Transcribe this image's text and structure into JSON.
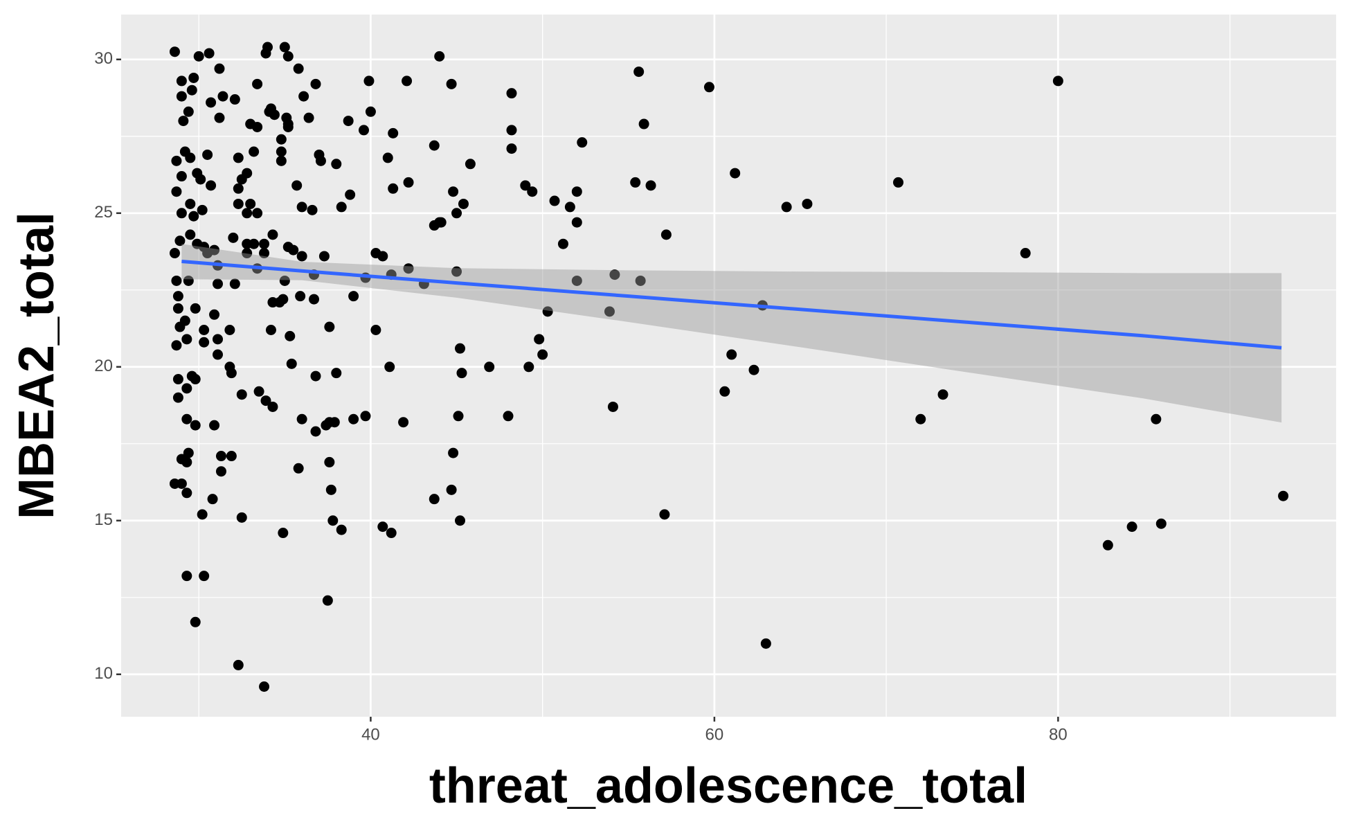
{
  "chart_data": {
    "type": "scatter",
    "x_label": "threat_adolescence_total",
    "y_label": "MBEA2_total",
    "xlim": [
      25.48,
      96.18
    ],
    "ylim": [
      8.62,
      31.46
    ],
    "xticks": [
      40,
      60,
      80
    ],
    "yticks": [
      10,
      15,
      20,
      25,
      30
    ],
    "x_minor_ticks": [
      30,
      50,
      70,
      90
    ],
    "y_minor_ticks": [
      12.5,
      17.5,
      22.5,
      27.5
    ],
    "grid": true,
    "panel_color": "#ebebeb",
    "series": [
      {
        "color": "#000000",
        "x": [
          28.6,
          28.7,
          28.7,
          28.6,
          28.7,
          28.8,
          28.8,
          28.9,
          28.7,
          28.8,
          28.8,
          28.6,
          29.0,
          29.0,
          28.9,
          29.0,
          29.0,
          29.0,
          29.0,
          29.1,
          29.2,
          29.2,
          29.3,
          29.3,
          29.3,
          29.3,
          29.3,
          29.3,
          29.4,
          29.4,
          29.5,
          29.5,
          29.5,
          29.4,
          29.6,
          29.7,
          29.7,
          29.6,
          29.8,
          29.8,
          29.8,
          29.8,
          29.9,
          29.9,
          30.0,
          30.1,
          30.2,
          30.3,
          30.3,
          30.3,
          30.2,
          30.3,
          30.5,
          30.5,
          30.7,
          30.7,
          30.6,
          30.9,
          30.9,
          30.8,
          30.9,
          31.1,
          31.1,
          31.1,
          31.1,
          31.2,
          31.2,
          31.3,
          31.3,
          31.4,
          31.8,
          31.8,
          31.9,
          31.9,
          32.0,
          32.1,
          32.1,
          32.3,
          32.3,
          32.3,
          32.5,
          32.5,
          32.5,
          32.3,
          32.8,
          32.8,
          32.8,
          32.8,
          33.0,
          33.0,
          33.2,
          33.2,
          33.4,
          33.4,
          33.4,
          33.4,
          33.5,
          33.8,
          33.8,
          34.0,
          33.9,
          33.9,
          33.8,
          34.1,
          34.2,
          34.3,
          34.3,
          34.2,
          34.3,
          34.4,
          34.7,
          34.8,
          34.8,
          34.8,
          34.9,
          35.0,
          34.9,
          35.0,
          35.1,
          35.2,
          35.2,
          35.2,
          35.2,
          35.3,
          35.4,
          35.5,
          35.8,
          35.7,
          35.9,
          35.8,
          36.0,
          36.0,
          36.0,
          36.1,
          36.4,
          36.6,
          36.7,
          36.7,
          36.8,
          36.8,
          36.8,
          37.0,
          37.1,
          37.3,
          37.4,
          37.6,
          37.6,
          37.6,
          37.7,
          37.5,
          37.8,
          37.9,
          38.0,
          38.0,
          38.3,
          38.3,
          38.7,
          38.8,
          39.0,
          39.0,
          39.6,
          39.7,
          39.7,
          39.9,
          40.0,
          40.3,
          40.3,
          40.7,
          40.7,
          41.0,
          41.1,
          41.2,
          41.2,
          41.3,
          41.3,
          41.9,
          42.1,
          42.2,
          42.2,
          43.1,
          43.7,
          43.7,
          43.7,
          44.0,
          44.1,
          44.0,
          44.7,
          44.8,
          44.8,
          44.7,
          45.0,
          45.0,
          45.1,
          45.2,
          45.3,
          45.2,
          45.4,
          45.8,
          46.9,
          48.0,
          48.2,
          48.2,
          48.2,
          49.0,
          49.2,
          49.4,
          49.8,
          50.0,
          50.3,
          50.7,
          51.2,
          51.6,
          52.0,
          52.0,
          52.0,
          52.3,
          53.9,
          54.1,
          54.2,
          55.4,
          55.6,
          55.7,
          55.9,
          56.3,
          57.1,
          57.2,
          59.7,
          60.6,
          61.0,
          61.2,
          62.3,
          62.8,
          63.0,
          64.2,
          65.4,
          70.7,
          72.0,
          73.3,
          78.1,
          80.0,
          82.9,
          84.3,
          85.7,
          86.0,
          93.1
        ],
        "values": [
          30.25,
          26.7,
          25.7,
          23.7,
          22.8,
          22.3,
          21.9,
          21.3,
          20.7,
          19.6,
          19.0,
          16.2,
          16.2,
          17.0,
          24.1,
          25.0,
          26.2,
          28.8,
          29.3,
          28.0,
          27.0,
          21.5,
          20.9,
          19.3,
          18.3,
          16.9,
          15.9,
          13.2,
          17.2,
          22.8,
          24.3,
          25.3,
          26.8,
          28.3,
          29.0,
          29.4,
          24.9,
          19.7,
          11.7,
          18.1,
          19.6,
          21.9,
          24.0,
          26.3,
          30.1,
          26.1,
          25.1,
          23.9,
          21.2,
          20.8,
          15.2,
          13.2,
          23.7,
          26.9,
          28.6,
          25.9,
          30.2,
          21.7,
          18.1,
          15.7,
          23.8,
          23.3,
          22.7,
          20.4,
          20.9,
          28.1,
          29.7,
          17.1,
          16.6,
          28.8,
          21.2,
          20.0,
          19.8,
          17.1,
          24.2,
          22.7,
          28.7,
          26.8,
          25.8,
          25.3,
          26.1,
          19.1,
          15.1,
          10.3,
          26.3,
          25.0,
          24.0,
          23.7,
          25.3,
          27.9,
          27.0,
          24.0,
          23.2,
          29.2,
          27.8,
          25.0,
          19.2,
          24.0,
          23.7,
          30.4,
          30.2,
          18.9,
          9.6,
          28.3,
          28.4,
          24.3,
          22.1,
          21.2,
          18.7,
          28.2,
          22.1,
          26.7,
          27.0,
          27.4,
          22.2,
          22.8,
          14.6,
          30.4,
          28.1,
          27.9,
          27.8,
          30.1,
          23.9,
          21.0,
          20.1,
          23.8,
          29.7,
          25.9,
          22.3,
          16.7,
          25.2,
          23.6,
          18.3,
          28.8,
          28.1,
          25.1,
          22.2,
          23.0,
          29.2,
          19.7,
          17.9,
          26.9,
          26.7,
          23.6,
          18.1,
          18.2,
          16.9,
          21.3,
          16.0,
          12.4,
          15.0,
          18.2,
          26.6,
          19.8,
          25.2,
          14.7,
          28.0,
          25.6,
          22.3,
          18.3,
          27.7,
          22.9,
          18.4,
          29.3,
          28.3,
          23.7,
          21.2,
          23.6,
          14.8,
          26.8,
          20.0,
          23.0,
          14.6,
          25.8,
          27.6,
          18.2,
          29.3,
          26.0,
          23.2,
          22.7,
          27.2,
          24.6,
          15.7,
          24.7,
          24.7,
          30.1,
          16.0,
          17.2,
          25.7,
          29.2,
          25.0,
          23.1,
          18.4,
          20.6,
          19.8,
          15.0,
          25.3,
          26.6,
          20.0,
          18.4,
          27.1,
          27.7,
          28.9,
          25.9,
          20.0,
          25.7,
          20.9,
          20.4,
          21.8,
          25.4,
          24.0,
          25.2,
          25.7,
          24.7,
          22.8,
          27.3,
          21.8,
          18.7,
          23.0,
          26.0,
          29.6,
          22.8,
          27.9,
          25.9,
          15.2,
          24.3,
          29.1,
          19.2,
          20.4,
          26.3,
          19.9,
          22.0,
          11.0,
          25.2,
          25.3,
          26.0,
          18.3,
          19.1,
          23.7,
          29.3,
          14.2,
          14.8,
          18.3,
          14.9,
          15.8
        ]
      }
    ],
    "fit": {
      "color": "#3366ff",
      "band_color": "#999999",
      "x": [
        29.0,
        36,
        45,
        55,
        65,
        75,
        85,
        93.0
      ],
      "values": [
        23.43,
        23.12,
        22.73,
        22.3,
        21.87,
        21.44,
        21.01,
        20.62
      ],
      "lower": [
        22.85,
        22.82,
        22.25,
        21.46,
        20.64,
        19.8,
        18.97,
        18.19
      ],
      "upper": [
        24.0,
        23.42,
        23.21,
        23.14,
        23.1,
        23.08,
        23.05,
        23.05
      ]
    }
  }
}
